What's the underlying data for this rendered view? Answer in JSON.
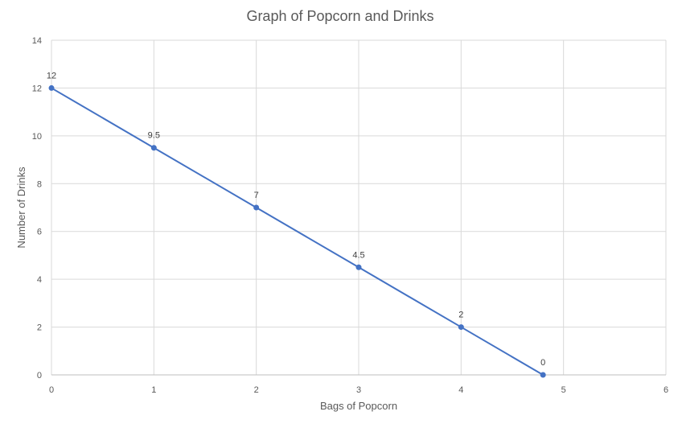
{
  "chart_data": {
    "type": "line",
    "title": "Graph of Popcorn and Drinks",
    "xlabel": "Bags of Popcorn",
    "ylabel": "Number of Drinks",
    "xlim": [
      0,
      6
    ],
    "ylim": [
      0,
      14
    ],
    "x_ticks": [
      0,
      1,
      2,
      3,
      4,
      5,
      6
    ],
    "y_ticks": [
      0,
      2,
      4,
      6,
      8,
      10,
      12,
      14
    ],
    "grid": true,
    "legend": "none",
    "series": [
      {
        "color": "#4472c4",
        "points": [
          {
            "x": 0,
            "y": 12,
            "label": "12"
          },
          {
            "x": 1,
            "y": 9.5,
            "label": "9.5"
          },
          {
            "x": 2,
            "y": 7,
            "label": "7"
          },
          {
            "x": 3,
            "y": 4.5,
            "label": "4.5"
          },
          {
            "x": 4,
            "y": 2,
            "label": "2"
          },
          {
            "x": 4.8,
            "y": 0,
            "label": "0"
          }
        ]
      }
    ]
  }
}
